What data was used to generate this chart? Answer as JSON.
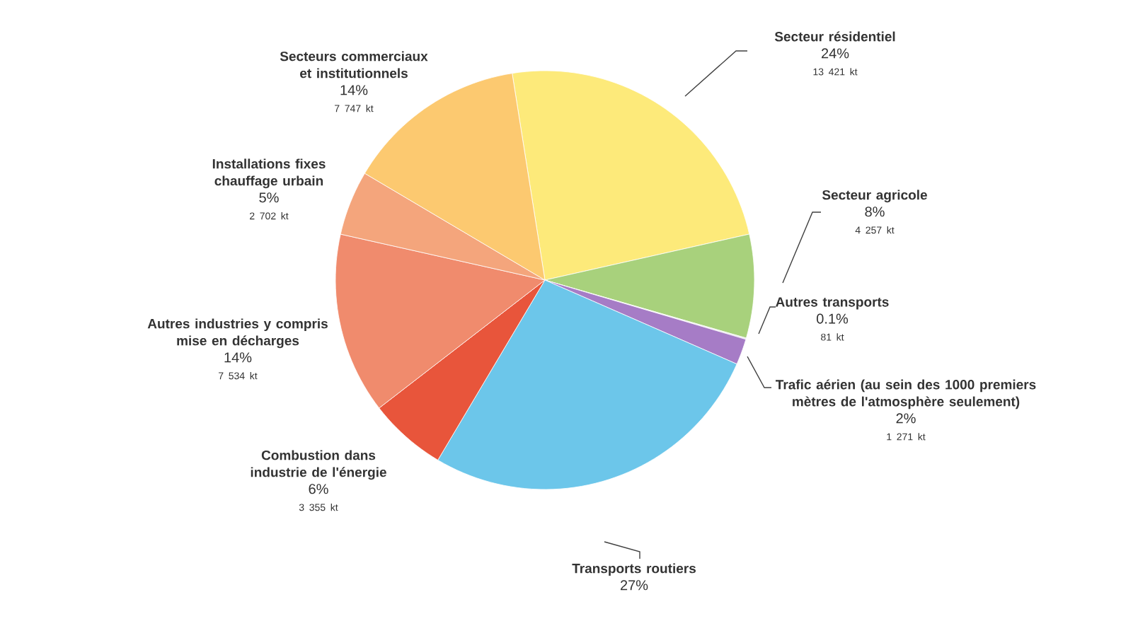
{
  "chart_data": {
    "type": "pie",
    "categories": [
      "Secteur résidentiel",
      "Secteur agricole",
      "Autres transports",
      "Trafic aérien (au sein des 1000 premiers mètres de l'atmosphère seulement)",
      "Transports routiers",
      "Combustion dans industrie de l'énergie",
      "Autres industries y compris mise en décharges",
      "Installations fixes chauffage urbain",
      "Secteurs commerciaux et institutionnels"
    ],
    "values": [
      24,
      8,
      0.1,
      2,
      27,
      6,
      14,
      5,
      14
    ],
    "value_labels": [
      "24%",
      "8%",
      "0.1%",
      "2%",
      "27%",
      "6%",
      "14%",
      "5%",
      "14%"
    ],
    "colors": [
      "#fdea7a",
      "#a8d17c",
      "#e6e6e6",
      "#a67cc6",
      "#6cc6ea",
      "#e8553b",
      "#f08b6d",
      "#f4a57c",
      "#fcc970"
    ],
    "annotations": [
      "13 421 kt",
      "4 257 kt",
      "81 kt",
      "1 271 kt",
      "3 355 kt",
      "7 534 kt",
      "2 702 kt",
      "7 747 kt"
    ]
  }
}
